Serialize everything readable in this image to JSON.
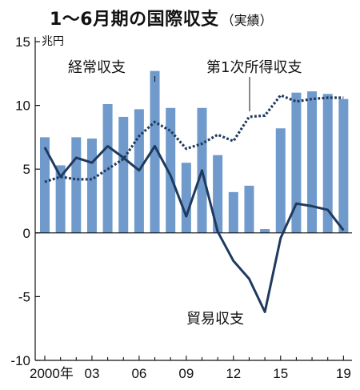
{
  "chart_data": {
    "type": "bar+line",
    "title": "1～6月期の国際収支",
    "subtitle": "（実績）",
    "unit": "兆円",
    "ylim": [
      -10,
      15
    ],
    "yticks": [
      "15",
      "10",
      "5",
      "0",
      "-5",
      "-10"
    ],
    "x": [
      2000,
      2001,
      2002,
      2003,
      2004,
      2005,
      2006,
      2007,
      2008,
      2009,
      2010,
      2011,
      2012,
      2013,
      2014,
      2015,
      2016,
      2017,
      2018,
      2019
    ],
    "xtick_labels": [
      "2000年",
      "03",
      "06",
      "09",
      "12",
      "15",
      "19"
    ],
    "series": [
      {
        "name": "経常収支",
        "kind": "bar",
        "color": "#6f9acb",
        "values": [
          7.5,
          5.3,
          7.5,
          7.4,
          10.1,
          9.1,
          9.7,
          12.7,
          9.8,
          5.5,
          9.8,
          6.1,
          3.2,
          3.7,
          0.3,
          8.2,
          11.0,
          11.1,
          10.9,
          10.5
        ]
      },
      {
        "name": "第1次所得収支",
        "kind": "line-dotted",
        "color": "#1f3a5f",
        "values": [
          4.0,
          4.4,
          4.2,
          4.2,
          5.0,
          5.8,
          7.6,
          8.7,
          8.0,
          6.6,
          7.0,
          7.7,
          7.2,
          9.1,
          9.2,
          10.8,
          10.3,
          10.5,
          10.6,
          10.6
        ]
      },
      {
        "name": "貿易収支",
        "kind": "line",
        "color": "#1f3a5f",
        "values": [
          6.7,
          4.4,
          5.9,
          5.5,
          6.8,
          5.9,
          4.9,
          6.8,
          4.5,
          1.3,
          4.9,
          0.1,
          -2.2,
          -3.6,
          -6.2,
          -0.4,
          2.3,
          2.1,
          1.8,
          0.2
        ]
      }
    ],
    "grid": false,
    "axis_color": "#111111"
  }
}
